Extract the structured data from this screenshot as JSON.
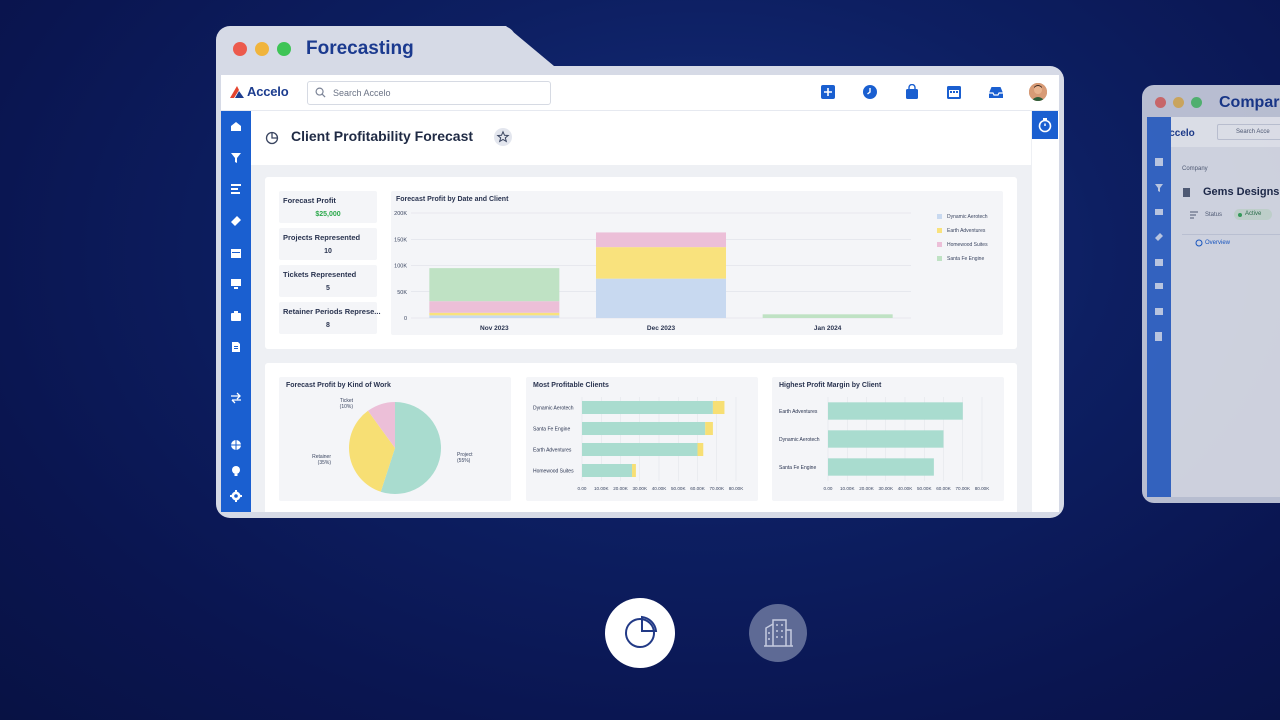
{
  "window": {
    "title": "Forecasting"
  },
  "topbar": {
    "logo_text": "Accelo",
    "search": {
      "placeholder": "Search Accelo"
    },
    "icons": [
      "add-icon",
      "clock-icon",
      "bag-icon",
      "calendar-icon",
      "inbox-icon"
    ]
  },
  "sidebar": {
    "icons": [
      "dashboard-icon",
      "filter-icon",
      "list-icon",
      "ticket-icon",
      "calendar-icon",
      "monitor-icon",
      "briefcase-icon",
      "document-icon",
      "transfer-icon",
      "globe-icon",
      "lightbulb-icon",
      "gear-icon"
    ]
  },
  "page": {
    "title": "Client Profitability Forecast"
  },
  "kpis": [
    {
      "label": "Forecast Profit",
      "value": "$25,000"
    },
    {
      "label": "Projects Represented",
      "value": "10"
    },
    {
      "label": "Tickets Represented",
      "value": "5"
    },
    {
      "label": "Retainer Periods Represe...",
      "value": "8"
    }
  ],
  "colors": {
    "dynamic_aerotech": "#c8d9f0",
    "earth_adventures": "#f9e27d",
    "homewood_suites": "#ecbfd8",
    "santa_fe_engine": "#bfe2c4",
    "teal_bar": "#a9dccf",
    "yellow_bar": "#f7df74",
    "accent": "#1a5fd0"
  },
  "chart_data": [
    {
      "type": "bar",
      "title": "Forecast Profit by Date and Client",
      "categories": [
        "Nov 2023",
        "Dec 2023",
        "Jan 2024"
      ],
      "yticks": [
        "200K",
        "150K",
        "100K",
        "50K",
        "0"
      ],
      "ylim": [
        0,
        200000
      ],
      "stacked": true,
      "legend_position": "right",
      "series": [
        {
          "name": "Dynamic Aerotech",
          "values": [
            5000,
            75000,
            0
          ]
        },
        {
          "name": "Earth Adventures",
          "values": [
            5000,
            60000,
            0
          ]
        },
        {
          "name": "Homewood Suites",
          "values": [
            22000,
            28000,
            0
          ]
        },
        {
          "name": "Santa Fe Engine",
          "values": [
            63000,
            0,
            7000
          ]
        }
      ]
    },
    {
      "type": "pie",
      "title": "Forecast Profit by Kind of Work",
      "slices": [
        {
          "label": "Project",
          "pct_label": "(55%)",
          "value": 55
        },
        {
          "label": "Retainer",
          "pct_label": "(35%)",
          "value": 35
        },
        {
          "label": "Ticket",
          "pct_label": "(10%)",
          "value": 10
        }
      ]
    },
    {
      "type": "bar",
      "orientation": "horizontal",
      "title": "Most Profitable Clients",
      "categories": [
        "Dynamic Aerotech",
        "Santa Fe Engine",
        "Earth Adventures",
        "Homewood Suites"
      ],
      "xticks": [
        "0.00",
        "10.00K",
        "20.00K",
        "30.00K",
        "40.00K",
        "50.00K",
        "60.00K",
        "70.00K",
        "80.00K"
      ],
      "xlim": [
        0,
        80000
      ],
      "stacked": true,
      "series": [
        {
          "name": "teal",
          "values": [
            68000,
            64000,
            60000,
            26000
          ]
        },
        {
          "name": "yellow",
          "values": [
            6000,
            4000,
            3000,
            2000
          ]
        }
      ]
    },
    {
      "type": "bar",
      "orientation": "horizontal",
      "title": "Highest Profit Margin by Client",
      "categories": [
        "Earth Adventures",
        "Dynamic Aerotech",
        "Santa Fe Engine"
      ],
      "xticks": [
        "0.00",
        "10.00K",
        "20.00K",
        "30.00K",
        "40.00K",
        "50.00K",
        "60.00K",
        "70.00K",
        "80.00K"
      ],
      "xlim": [
        0,
        80000
      ],
      "values": [
        70000,
        60000,
        55000
      ]
    }
  ],
  "window2": {
    "title": "Compar",
    "logo_text": "Accelo",
    "search_placeholder": "Search Acce",
    "breadcrumb": "Company",
    "page_title": "Gems Designs",
    "status_label": "Status",
    "status_value": "Active",
    "tab": "Overview"
  },
  "bottom": {
    "buttons": [
      "pie-chart-icon",
      "building-icon"
    ]
  }
}
